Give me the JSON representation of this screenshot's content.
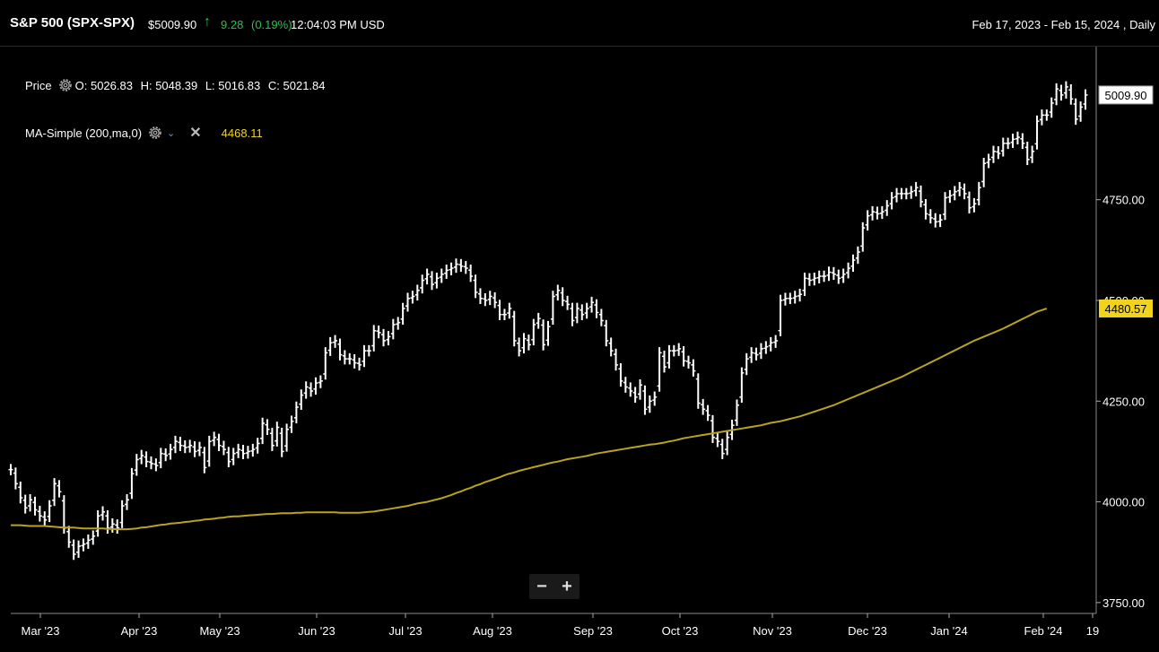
{
  "header": {
    "title": "S&P 500 (SPX-SPX)",
    "price": "$5009.90",
    "change": "9.28",
    "change_pct": "(0.19%)",
    "time": "12:04:03 PM USD",
    "range": "Feb 17, 2023 - Feb 15, 2024 , Daily",
    "up_color": "#27c24c"
  },
  "legend": {
    "price_label": "Price",
    "open": "O: 5026.83",
    "high": "H: 5048.39",
    "low": "L: 5016.83",
    "close": "C: 5021.84",
    "ma_label": "MA-Simple (200,ma,0)",
    "ma_value": "4468.11"
  },
  "zoom": {
    "minus": "−",
    "plus": "+"
  },
  "chart_data": {
    "type": "line",
    "series": [
      {
        "name": "Price",
        "values": [
          4080,
          4045,
          4010,
          3985,
          4005,
          3980,
          3965,
          3955,
          3990,
          4045,
          4025,
          3935,
          3900,
          3870,
          3890,
          3895,
          3905,
          3915,
          3965,
          3975,
          3935,
          3945,
          3935,
          3990,
          4005,
          4070,
          4105,
          4115,
          4100,
          4095,
          4090,
          4120,
          4115,
          4130,
          4150,
          4140,
          4135,
          4140,
          4125,
          4135,
          4085,
          4150,
          4160,
          4140,
          4130,
          4100,
          4120,
          4130,
          4120,
          4125,
          4130,
          4145,
          4195,
          4180,
          4140,
          4185,
          4125,
          4180,
          4200,
          4235,
          4265,
          4285,
          4275,
          4295,
          4300,
          4370,
          4395,
          4400,
          4365,
          4355,
          4355,
          4345,
          4340,
          4375,
          4375,
          4425,
          4420,
          4400,
          4410,
          4440,
          4445,
          4480,
          4505,
          4510,
          4525,
          4550,
          4565,
          4540,
          4555,
          4565,
          4575,
          4580,
          4590,
          4585,
          4580,
          4560,
          4520,
          4505,
          4500,
          4510,
          4495,
          4465,
          4465,
          4480,
          4400,
          4375,
          4405,
          4390,
          4440,
          4455,
          4390,
          4435,
          4510,
          4525,
          4500,
          4490,
          4450,
          4480,
          4465,
          4480,
          4495,
          4470,
          4450,
          4400,
          4375,
          4340,
          4300,
          4285,
          4275,
          4260,
          4290,
          4230,
          4250,
          4260,
          4370,
          4335,
          4375,
          4375,
          4380,
          4350,
          4345,
          4325,
          4245,
          4230,
          4215,
          4160,
          4150,
          4120,
          4160,
          4190,
          4240,
          4320,
          4355,
          4370,
          4365,
          4380,
          4385,
          4395,
          4400,
          4500,
          4505,
          4505,
          4510,
          4515,
          4555,
          4550,
          4555,
          4560,
          4560,
          4570,
          4565,
          4555,
          4565,
          4580,
          4600,
          4620,
          4680,
          4710,
          4720,
          4715,
          4720,
          4735,
          4755,
          4765,
          4765,
          4765,
          4770,
          4780,
          4745,
          4715,
          4705,
          4695,
          4700,
          4755,
          4760,
          4770,
          4780,
          4765,
          4730,
          4740,
          4780,
          4840,
          4850,
          4870,
          4865,
          4890,
          4890,
          4900,
          4905,
          4890,
          4850,
          4870,
          4945,
          4960,
          4960,
          4990,
          5025,
          5010,
          5030,
          5000,
          4950,
          4980,
          5010
        ]
      },
      {
        "name": "MA-Simple (200,ma,0)",
        "values": [
          3942,
          3942,
          3942,
          3941,
          3940,
          3940,
          3940,
          3940,
          3939,
          3938,
          3937,
          3936,
          3936,
          3936,
          3935,
          3934,
          3934,
          3934,
          3934,
          3934,
          3933,
          3933,
          3932,
          3932,
          3932,
          3933,
          3934,
          3936,
          3937,
          3939,
          3941,
          3943,
          3944,
          3946,
          3947,
          3948,
          3950,
          3951,
          3953,
          3954,
          3956,
          3957,
          3958,
          3960,
          3961,
          3963,
          3964,
          3964,
          3965,
          3966,
          3967,
          3968,
          3969,
          3970,
          3970,
          3971,
          3972,
          3972,
          3972,
          3973,
          3973,
          3974,
          3974,
          3974,
          3974,
          3974,
          3974,
          3974,
          3973,
          3973,
          3973,
          3973,
          3973,
          3974,
          3975,
          3976,
          3978,
          3980,
          3982,
          3984,
          3986,
          3988,
          3990,
          3993,
          3996,
          3998,
          4000,
          4003,
          4006,
          4009,
          4013,
          4017,
          4022,
          4026,
          4031,
          4035,
          4040,
          4044,
          4049,
          4053,
          4057,
          4061,
          4066,
          4070,
          4073,
          4077,
          4080,
          4083,
          4086,
          4089,
          4092,
          4095,
          4098,
          4100,
          4103,
          4106,
          4108,
          4110,
          4112,
          4114,
          4117,
          4120,
          4122,
          4124,
          4126,
          4128,
          4130,
          4132,
          4134,
          4136,
          4138,
          4140,
          4142,
          4143,
          4145,
          4147,
          4150,
          4152,
          4155,
          4158,
          4160,
          4162,
          4164,
          4166,
          4168,
          4170,
          4172,
          4174,
          4176,
          4178,
          4180,
          4182,
          4184,
          4186,
          4188,
          4190,
          4193,
          4196,
          4198,
          4200,
          4203,
          4206,
          4209,
          4212,
          4216,
          4220,
          4224,
          4228,
          4232,
          4236,
          4240,
          4245,
          4250,
          4255,
          4260,
          4265,
          4270,
          4275,
          4280,
          4285,
          4290,
          4295,
          4300,
          4305,
          4310,
          4316,
          4322,
          4328,
          4334,
          4340,
          4346,
          4352,
          4358,
          4364,
          4370,
          4376,
          4382,
          4388,
          4394,
          4400,
          4405,
          4410,
          4415,
          4420,
          4425,
          4430,
          4436,
          4442,
          4448,
          4454,
          4460,
          4466,
          4472,
          4476,
          4480
        ]
      }
    ],
    "x_tick_labels": [
      "Mar '23",
      "Apr '23",
      "May '23",
      "Jun '23",
      "Jul '23",
      "Aug '23",
      "Sep '23",
      "Oct '23",
      "Nov '23",
      "Dec '23",
      "Jan '24",
      "Feb '24",
      "19"
    ],
    "y_ticks": [
      3750,
      4000,
      4250,
      4500,
      4750
    ],
    "y_tick_labels": [
      "3750.00",
      "4000.00",
      "4250.00",
      "4500.00",
      "4750.00"
    ],
    "ylim": [
      3723,
      5130
    ],
    "last_price_label": "5009.90",
    "ma_last_label": "4480.57",
    "colors": {
      "bars": "#ffffff",
      "ma_line": "#b8a21e",
      "ma_badge": "#f2d31b",
      "grid": "#2a2a2a",
      "background": "#000000"
    },
    "grid": false,
    "legend_position": "top-left"
  }
}
